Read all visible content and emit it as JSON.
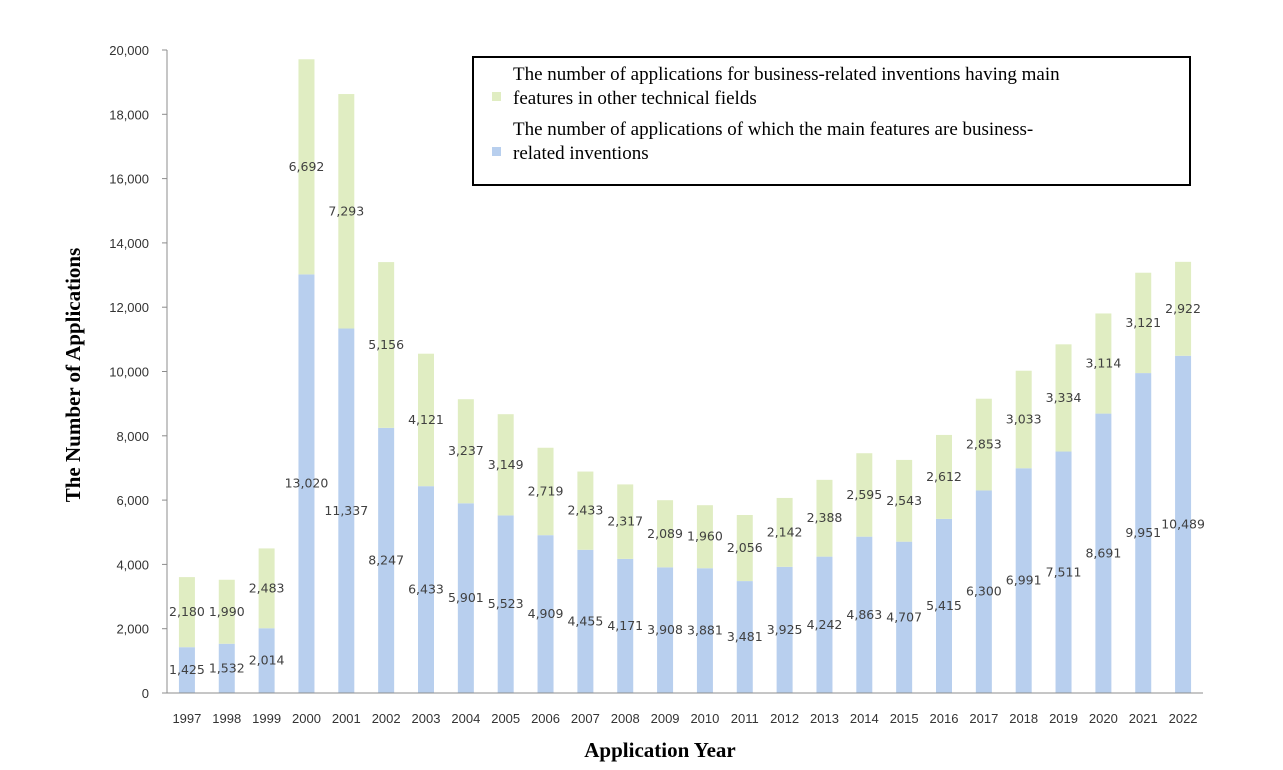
{
  "chart_data": {
    "type": "bar",
    "stacked": true,
    "title": "",
    "xlabel": "Application Year",
    "ylabel": "The Number of Applications",
    "ylim": [
      0,
      20000
    ],
    "yticks": [
      0,
      2000,
      4000,
      6000,
      8000,
      10000,
      12000,
      14000,
      16000,
      18000,
      20000
    ],
    "ytick_labels": [
      "0",
      "2,000",
      "4,000",
      "6,000",
      "8,000",
      "10,000",
      "12,000",
      "14,000",
      "16,000",
      "18,000",
      "20,000"
    ],
    "grid": false,
    "legend_position": "top-right",
    "categories": [
      "1997",
      "1998",
      "1999",
      "2000",
      "2001",
      "2002",
      "2003",
      "2004",
      "2005",
      "2006",
      "2007",
      "2008",
      "2009",
      "2010",
      "2011",
      "2012",
      "2013",
      "2014",
      "2015",
      "2016",
      "2017",
      "2018",
      "2019",
      "2020",
      "2021",
      "2022"
    ],
    "series": [
      {
        "name": "The number of applications of which the main features  are business-related inventions",
        "legend_lines": [
          "The number of applications of which the main features  are business-",
          "related inventions"
        ],
        "color": "#b8cfee",
        "values": [
          1425,
          1532,
          2014,
          13020,
          11337,
          8247,
          6433,
          5901,
          5523,
          4909,
          4455,
          4171,
          3908,
          3881,
          3481,
          3925,
          4242,
          4863,
          4707,
          5415,
          6300,
          6991,
          7511,
          8691,
          9951,
          10489
        ],
        "labels": [
          "1,425",
          "1,532",
          "2,014",
          "13,020",
          "11,337",
          "8,247",
          "6,433",
          "5,901",
          "5,523",
          "4,909",
          "4,455",
          "4,171",
          "3,908",
          "3,881",
          "3,481",
          "3,925",
          "4,242",
          "4,863",
          "4,707",
          "5,415",
          "6,300",
          "6,991",
          "7,511",
          "8,691",
          "9,951",
          "10,489"
        ]
      },
      {
        "name": "The number of applications for business-related inventions having main features in other technical fields",
        "legend_lines": [
          "The number of applications for business-related inventions having main",
          "features in other technical fields"
        ],
        "color": "#e0edc2",
        "values": [
          2180,
          1990,
          2483,
          6692,
          7293,
          5156,
          4121,
          3237,
          3149,
          2719,
          2433,
          2317,
          2089,
          1960,
          2056,
          2142,
          2388,
          2595,
          2543,
          2612,
          2853,
          3033,
          3334,
          3114,
          3121,
          2922
        ],
        "labels": [
          "2,180",
          "1,990",
          "2,483",
          "6,692",
          "7,293",
          "5,156",
          "4,121",
          "3,237",
          "3,149",
          "2,719",
          "2,433",
          "2,317",
          "2,089",
          "1,960",
          "2,056",
          "2,142",
          "2,388",
          "2,595",
          "2,543",
          "2,612",
          "2,853",
          "3,033",
          "3,334",
          "3,114",
          "3,121",
          "2,922"
        ]
      }
    ],
    "legend_order": [
      1,
      0
    ]
  }
}
